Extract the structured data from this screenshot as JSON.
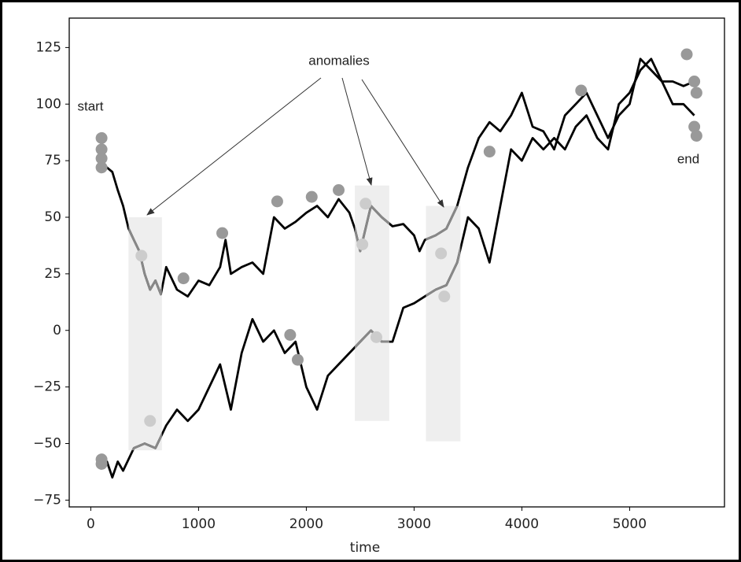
{
  "chart_data": {
    "type": "line",
    "xlabel": "time",
    "xlim": [
      -200,
      5880
    ],
    "ylim": [
      -78,
      138
    ],
    "xticks": [
      0,
      1000,
      2000,
      3000,
      4000,
      5000
    ],
    "yticks": [
      {
        "value": -75,
        "label": "−75"
      },
      {
        "value": -50,
        "label": "−50"
      },
      {
        "value": -25,
        "label": "−25"
      },
      0,
      25,
      50,
      75,
      100,
      125
    ],
    "series": [
      {
        "color": "#000000",
        "highlight_color": "#888888",
        "x": [
          80,
          150,
          200,
          250,
          300,
          350,
          400,
          450,
          500,
          550,
          600,
          650,
          700,
          800,
          900,
          1000,
          1100,
          1200,
          1250,
          1300,
          1400,
          1500,
          1600,
          1700,
          1800,
          1900,
          2000,
          2100,
          2200,
          2300,
          2400,
          2450,
          2500,
          2600,
          2700,
          2800,
          2900,
          3000,
          3050,
          3100,
          3200,
          3300,
          3400,
          3500,
          3600,
          3700,
          3800,
          3900,
          4000,
          4100,
          4200,
          4300,
          4400,
          4500,
          4600,
          4700,
          4800,
          4900,
          5000,
          5100,
          5200,
          5300,
          5400,
          5500,
          5600
        ],
        "values": [
          75,
          72,
          70,
          62,
          55,
          45,
          40,
          35,
          25,
          18,
          22,
          16,
          28,
          18,
          15,
          22,
          20,
          28,
          40,
          25,
          28,
          30,
          25,
          50,
          45,
          48,
          52,
          55,
          50,
          58,
          52,
          45,
          35,
          55,
          50,
          46,
          47,
          42,
          35,
          40,
          42,
          45,
          55,
          72,
          85,
          92,
          88,
          95,
          105,
          90,
          88,
          80,
          95,
          100,
          105,
          95,
          85,
          95,
          100,
          120,
          115,
          110,
          100,
          100,
          95
        ]
      },
      {
        "color": "#000000",
        "highlight_color": "#888888",
        "x": [
          80,
          150,
          200,
          250,
          300,
          400,
          500,
          600,
          700,
          800,
          900,
          1000,
          1100,
          1200,
          1300,
          1400,
          1500,
          1600,
          1700,
          1800,
          1900,
          2000,
          2100,
          2200,
          2300,
          2400,
          2500,
          2600,
          2700,
          2800,
          2900,
          3000,
          3100,
          3200,
          3300,
          3400,
          3500,
          3600,
          3700,
          3800,
          3900,
          4000,
          4100,
          4200,
          4300,
          4400,
          4500,
          4600,
          4700,
          4800,
          4900,
          5000,
          5100,
          5200,
          5300,
          5400,
          5500,
          5600
        ],
        "values": [
          -55,
          -58,
          -65,
          -58,
          -62,
          -52,
          -50,
          -52,
          -42,
          -35,
          -40,
          -35,
          -25,
          -15,
          -35,
          -10,
          5,
          -5,
          0,
          -10,
          -5,
          -25,
          -35,
          -20,
          -15,
          -10,
          -5,
          0,
          -5,
          -5,
          10,
          12,
          15,
          18,
          20,
          30,
          50,
          45,
          30,
          55,
          80,
          75,
          85,
          80,
          85,
          80,
          90,
          95,
          85,
          80,
          100,
          105,
          115,
          120,
          110,
          110,
          108,
          110
        ]
      }
    ],
    "bands": [
      {
        "x": [
          350,
          660
        ],
        "y": [
          -53,
          50
        ],
        "color": "#eeeeee"
      },
      {
        "x": [
          2450,
          2770
        ],
        "y": [
          -40,
          64
        ],
        "color": "#eeeeee"
      },
      {
        "x": [
          3110,
          3430
        ],
        "y": [
          -49,
          55
        ],
        "color": "#eeeeee"
      }
    ],
    "points": {
      "x": [
        100,
        100,
        100,
        100,
        100,
        100,
        1220,
        860,
        1730,
        2050,
        2300,
        1850,
        1920,
        3700,
        4550,
        5530,
        5600,
        5620,
        5600,
        5620,
        470,
        550,
        2520,
        2550,
        2650,
        3250,
        3280
      ],
      "y": [
        85,
        80,
        76,
        72,
        -59,
        -57,
        43,
        23,
        57,
        59,
        62,
        -2,
        -13,
        79,
        106,
        122,
        110,
        105,
        90,
        86,
        33,
        -40,
        38,
        56,
        -3,
        34,
        15
      ],
      "colors": [
        "#999999",
        "#999999",
        "#999999",
        "#999999",
        "#999999",
        "#999999",
        "#999999",
        "#999999",
        "#999999",
        "#999999",
        "#999999",
        "#999999",
        "#999999",
        "#999999",
        "#999999",
        "#999999",
        "#999999",
        "#999999",
        "#999999",
        "#999999",
        "#cccccc",
        "#cccccc",
        "#cccccc",
        "#cccccc",
        "#cccccc",
        "#cccccc",
        "#cccccc"
      ]
    },
    "annotations": {
      "anomalies": "anomalies",
      "start": "start",
      "end": "end"
    }
  }
}
